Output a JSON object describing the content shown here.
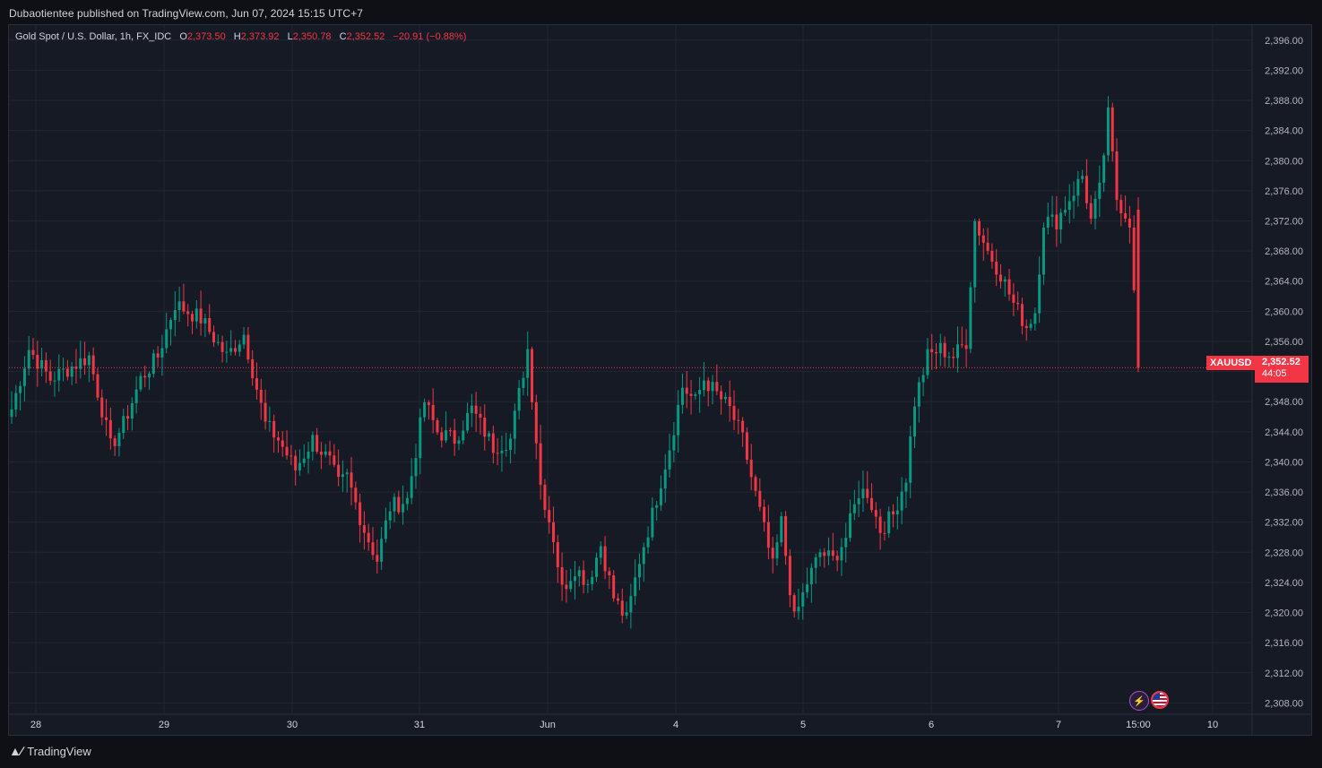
{
  "header": {
    "published": "Dubaotientee published on TradingView.com, Jun 07, 2024 15:15 UTC+7"
  },
  "legend": {
    "symbol": "Gold Spot / U.S. Dollar, 1h, FX_IDC",
    "o_label": "O",
    "o": "2,373.50",
    "h_label": "H",
    "h": "2,373.92",
    "l_label": "L",
    "l": "2,350.78",
    "c_label": "C",
    "c": "2,352.52",
    "change": "−20.91 (−0.88%)"
  },
  "price_tag": {
    "symbol": "XAUUSD",
    "price": "2,352.52",
    "countdown": "44:05"
  },
  "footer": {
    "brand": "TradingView"
  },
  "colors": {
    "up": "#089981",
    "down": "#f23645",
    "bg": "#161a25",
    "grid": "#232632",
    "text": "#d1d4dc"
  },
  "icons": [
    "lightning-icon",
    "us-flag-icon",
    "tradingview-logo-icon"
  ],
  "chart_data": {
    "type": "candlestick",
    "ylim": [
      2306.5,
      2398
    ],
    "y_ticks": [
      "2,308.00",
      "2,312.00",
      "2,316.00",
      "2,320.00",
      "2,324.00",
      "2,328.00",
      "2,332.00",
      "2,336.00",
      "2,340.00",
      "2,344.00",
      "2,348.00",
      "2,352.00",
      "2,356.00",
      "2,360.00",
      "2,364.00",
      "2,368.00",
      "2,372.00",
      "2,376.00",
      "2,380.00",
      "2,384.00",
      "2,388.00",
      "2,392.00",
      "2,396.00"
    ],
    "x_labels": [
      "28",
      "29",
      "30",
      "31",
      "Jun",
      "4",
      "5",
      "6",
      "7",
      "15:00",
      "10"
    ],
    "last_price": 2352.52,
    "anchors": [
      [
        0,
        2347
      ],
      [
        4,
        2355
      ],
      [
        9,
        2351
      ],
      [
        12,
        2352
      ],
      [
        18,
        2354
      ],
      [
        21,
        2347
      ],
      [
        23,
        2342
      ],
      [
        26,
        2345
      ],
      [
        30,
        2351
      ],
      [
        34,
        2354
      ],
      [
        38,
        2361
      ],
      [
        44,
        2359
      ],
      [
        50,
        2354
      ],
      [
        54,
        2357
      ],
      [
        59,
        2345
      ],
      [
        62,
        2343
      ],
      [
        66,
        2339
      ],
      [
        70,
        2343
      ],
      [
        74,
        2340
      ],
      [
        76,
        2337
      ],
      [
        78,
        2338
      ],
      [
        82,
        2331
      ],
      [
        85,
        2327
      ],
      [
        88,
        2334
      ],
      [
        92,
        2335
      ],
      [
        96,
        2348
      ],
      [
        99,
        2344
      ],
      [
        103,
        2343
      ],
      [
        107,
        2347
      ],
      [
        112,
        2342
      ],
      [
        116,
        2343
      ],
      [
        120,
        2355
      ],
      [
        123,
        2337
      ],
      [
        126,
        2330
      ],
      [
        128,
        2323
      ],
      [
        131,
        2326
      ],
      [
        134,
        2324
      ],
      [
        137,
        2329
      ],
      [
        140,
        2322
      ],
      [
        143,
        2319
      ],
      [
        146,
        2327
      ],
      [
        149,
        2333
      ],
      [
        153,
        2342
      ],
      [
        156,
        2350
      ],
      [
        159,
        2348
      ],
      [
        161,
        2351
      ],
      [
        164,
        2349
      ],
      [
        167,
        2347
      ],
      [
        170,
        2343
      ],
      [
        172,
        2338
      ],
      [
        175,
        2331
      ],
      [
        177,
        2326
      ],
      [
        179,
        2332
      ],
      [
        182,
        2319
      ],
      [
        185,
        2324
      ],
      [
        188,
        2328
      ],
      [
        191,
        2327
      ],
      [
        194,
        2330
      ],
      [
        197,
        2336
      ],
      [
        199,
        2336
      ],
      [
        202,
        2331
      ],
      [
        205,
        2333
      ],
      [
        208,
        2338
      ],
      [
        210,
        2348
      ],
      [
        213,
        2354
      ],
      [
        216,
        2355
      ],
      [
        219,
        2354
      ],
      [
        222,
        2356
      ],
      [
        224,
        2372
      ],
      [
        227,
        2368
      ],
      [
        230,
        2365
      ],
      [
        233,
        2361
      ],
      [
        236,
        2358
      ],
      [
        238,
        2360
      ],
      [
        240,
        2372
      ],
      [
        243,
        2372
      ],
      [
        246,
        2375
      ],
      [
        249,
        2378
      ],
      [
        251,
        2372
      ],
      [
        253,
        2376
      ],
      [
        255,
        2386
      ],
      [
        257,
        2375
      ],
      [
        260,
        2372
      ],
      [
        262,
        2352.52
      ]
    ]
  }
}
